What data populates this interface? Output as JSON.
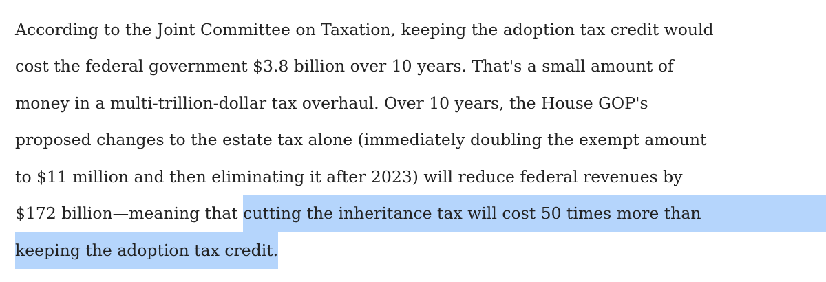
{
  "article": {
    "paragraph": {
      "lines": [
        [
          {
            "text": "According to the Joint Committee on Taxation, keeping the adoption tax credit would",
            "highlighted": false
          }
        ],
        [
          {
            "text": "cost the federal government $3.8 billion over 10 years. That's a small amount of",
            "highlighted": false
          }
        ],
        [
          {
            "text": "money in a multi-trillion-dollar tax overhaul. Over 10 years, the House GOP's",
            "highlighted": false
          }
        ],
        [
          {
            "text": "proposed changes to the estate tax alone (immediately doubling the exempt amount",
            "highlighted": false
          }
        ],
        [
          {
            "text": "to $11 million and then eliminating it after 2023) will reduce federal revenues by",
            "highlighted": false
          }
        ],
        [
          {
            "text": "$172 billion—meaning that ",
            "highlighted": false
          },
          {
            "text": "cutting the inheritance tax will cost 50 times more than",
            "highlighted": true
          }
        ],
        [
          {
            "text": "keeping the adoption tax credit.",
            "highlighted": true
          }
        ]
      ]
    }
  }
}
